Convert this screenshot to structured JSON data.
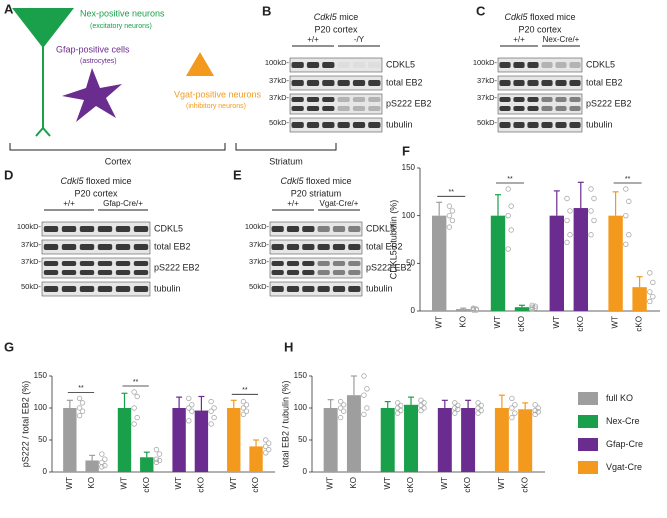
{
  "diagram": {
    "label": "A",
    "cells": [
      {
        "name": "Nex-positive neurons",
        "kind": "(excitatory neurons)"
      },
      {
        "name": "Gfap-positive cells",
        "kind": "(astrocytes)"
      },
      {
        "name": "Vgat-positive neurons",
        "kind": "(inhibitory neurons)"
      }
    ],
    "regions": [
      "Cortex",
      "Striatum"
    ]
  },
  "blots": [
    {
      "label": "B",
      "gene": "Cdkl5",
      "model": "mice",
      "region": "P20 cortex",
      "genotypes": [
        "+/+",
        "-/Y"
      ],
      "markers": [
        "100kD-",
        "37kD-",
        "37kD-",
        "50kD-"
      ],
      "bands": [
        "CDKL5",
        "total EB2",
        "pS222 EB2",
        "tubulin"
      ]
    },
    {
      "label": "C",
      "gene": "Cdkl5",
      "model": "floxed mice",
      "region": "P20 cortex",
      "genotypes": [
        "+/+",
        "Nex-Cre/+"
      ],
      "markers": [
        "100kD-",
        "37kD-",
        "37kD-",
        "50kD-"
      ],
      "bands": [
        "CDKL5",
        "total EB2",
        "pS222 EB2",
        "tubulin"
      ]
    },
    {
      "label": "D",
      "gene": "Cdkl5",
      "model": "floxed mice",
      "region": "P20 cortex",
      "genotypes": [
        "+/+",
        "Gfap-Cre/+"
      ],
      "markers": [
        "100kD-",
        "37kD-",
        "37kD-",
        "50kD-"
      ],
      "bands": [
        "CDKL5",
        "total EB2",
        "pS222 EB2",
        "tubulin"
      ]
    },
    {
      "label": "E",
      "gene": "Cdkl5",
      "model": "floxed mice",
      "region": "P20 striatum",
      "genotypes": [
        "+/+",
        "Vgat-Cre/+"
      ],
      "markers": [
        "100kD-",
        "37kD-",
        "37kD-",
        "50kD-"
      ],
      "bands": [
        "CDKL5",
        "total EB2",
        "pS222 EB2",
        "tubulin"
      ]
    }
  ],
  "chart_data": [
    {
      "type": "bar",
      "label": "F",
      "ylabel": "CDKL5 / tubulin (%)",
      "ylim": [
        0,
        150
      ],
      "yticks": [
        0,
        50,
        100,
        150
      ],
      "categories": [
        "WT",
        "KO",
        "WT",
        "cKO",
        "WT",
        "cKO",
        "WT",
        "cKO"
      ],
      "values": [
        100,
        2,
        100,
        4,
        100,
        108,
        100,
        25
      ],
      "errors": [
        14,
        1,
        22,
        2,
        26,
        27,
        25,
        11
      ],
      "colors": [
        "#9e9e9e",
        "#9e9e9e",
        "#1aa04a",
        "#1aa04a",
        "#6a2c8e",
        "#6a2c8e",
        "#f39a1e",
        "#f39a1e"
      ],
      "points": [
        [
          110,
          105,
          100,
          95,
          88
        ],
        [
          3,
          2,
          2,
          1,
          1
        ],
        [
          128,
          110,
          100,
          85,
          65
        ],
        [
          6,
          5,
          4,
          3,
          2
        ],
        [
          118,
          105,
          95,
          80,
          72
        ],
        [
          128,
          118,
          105,
          95,
          80
        ],
        [
          128,
          115,
          100,
          80,
          70
        ],
        [
          40,
          30,
          20,
          15,
          10
        ]
      ],
      "significance": [
        "**",
        "**",
        null,
        "**"
      ]
    },
    {
      "type": "bar",
      "label": "G",
      "ylabel": "pS222 / total EB2 (%)",
      "ylim": [
        0,
        150
      ],
      "yticks": [
        0,
        50,
        100,
        150
      ],
      "categories": [
        "WT",
        "KO",
        "WT",
        "cKO",
        "WT",
        "cKO",
        "WT",
        "cKO"
      ],
      "values": [
        100,
        18,
        100,
        23,
        100,
        96,
        100,
        40
      ],
      "errors": [
        12,
        8,
        23,
        8,
        17,
        22,
        12,
        10
      ],
      "colors": [
        "#9e9e9e",
        "#9e9e9e",
        "#1aa04a",
        "#1aa04a",
        "#6a2c8e",
        "#6a2c8e",
        "#f39a1e",
        "#f39a1e"
      ],
      "points": [
        [
          115,
          108,
          100,
          95,
          88
        ],
        [
          28,
          20,
          15,
          10,
          8
        ],
        [
          125,
          118,
          100,
          85,
          75
        ],
        [
          35,
          28,
          20,
          18,
          15
        ],
        [
          115,
          105,
          100,
          95,
          80
        ],
        [
          110,
          100,
          95,
          85,
          75
        ],
        [
          110,
          105,
          100,
          95,
          90
        ],
        [
          50,
          45,
          40,
          35,
          30
        ]
      ],
      "significance": [
        "**",
        "**",
        null,
        "**"
      ]
    },
    {
      "type": "bar",
      "label": "H",
      "ylabel": "total EB2 / tubulin (%)",
      "ylim": [
        0,
        150
      ],
      "yticks": [
        0,
        50,
        100,
        150
      ],
      "categories": [
        "WT",
        "KO",
        "WT",
        "cKO",
        "WT",
        "cKO",
        "WT",
        "cKO"
      ],
      "values": [
        100,
        120,
        100,
        105,
        100,
        100,
        100,
        98
      ],
      "errors": [
        13,
        30,
        10,
        12,
        12,
        12,
        20,
        10
      ],
      "colors": [
        "#9e9e9e",
        "#9e9e9e",
        "#1aa04a",
        "#1aa04a",
        "#6a2c8e",
        "#6a2c8e",
        "#f39a1e",
        "#f39a1e"
      ],
      "points": [
        [
          110,
          105,
          100,
          95,
          85
        ],
        [
          150,
          130,
          120,
          100,
          90
        ],
        [
          108,
          104,
          100,
          96,
          92
        ],
        [
          112,
          108,
          104,
          100,
          96
        ],
        [
          108,
          104,
          100,
          98,
          92
        ],
        [
          108,
          104,
          100,
          96,
          92
        ],
        [
          115,
          105,
          100,
          92,
          85
        ],
        [
          105,
          100,
          96,
          94,
          90
        ]
      ],
      "significance": [
        null,
        null,
        null,
        null
      ],
      "legend": [
        {
          "name": "full KO",
          "color": "#9e9e9e"
        },
        {
          "name": "Nex-Cre",
          "color": "#1aa04a"
        },
        {
          "name": "Gfap-Cre",
          "color": "#6a2c8e"
        },
        {
          "name": "Vgat-Cre",
          "color": "#f39a1e"
        }
      ]
    }
  ]
}
